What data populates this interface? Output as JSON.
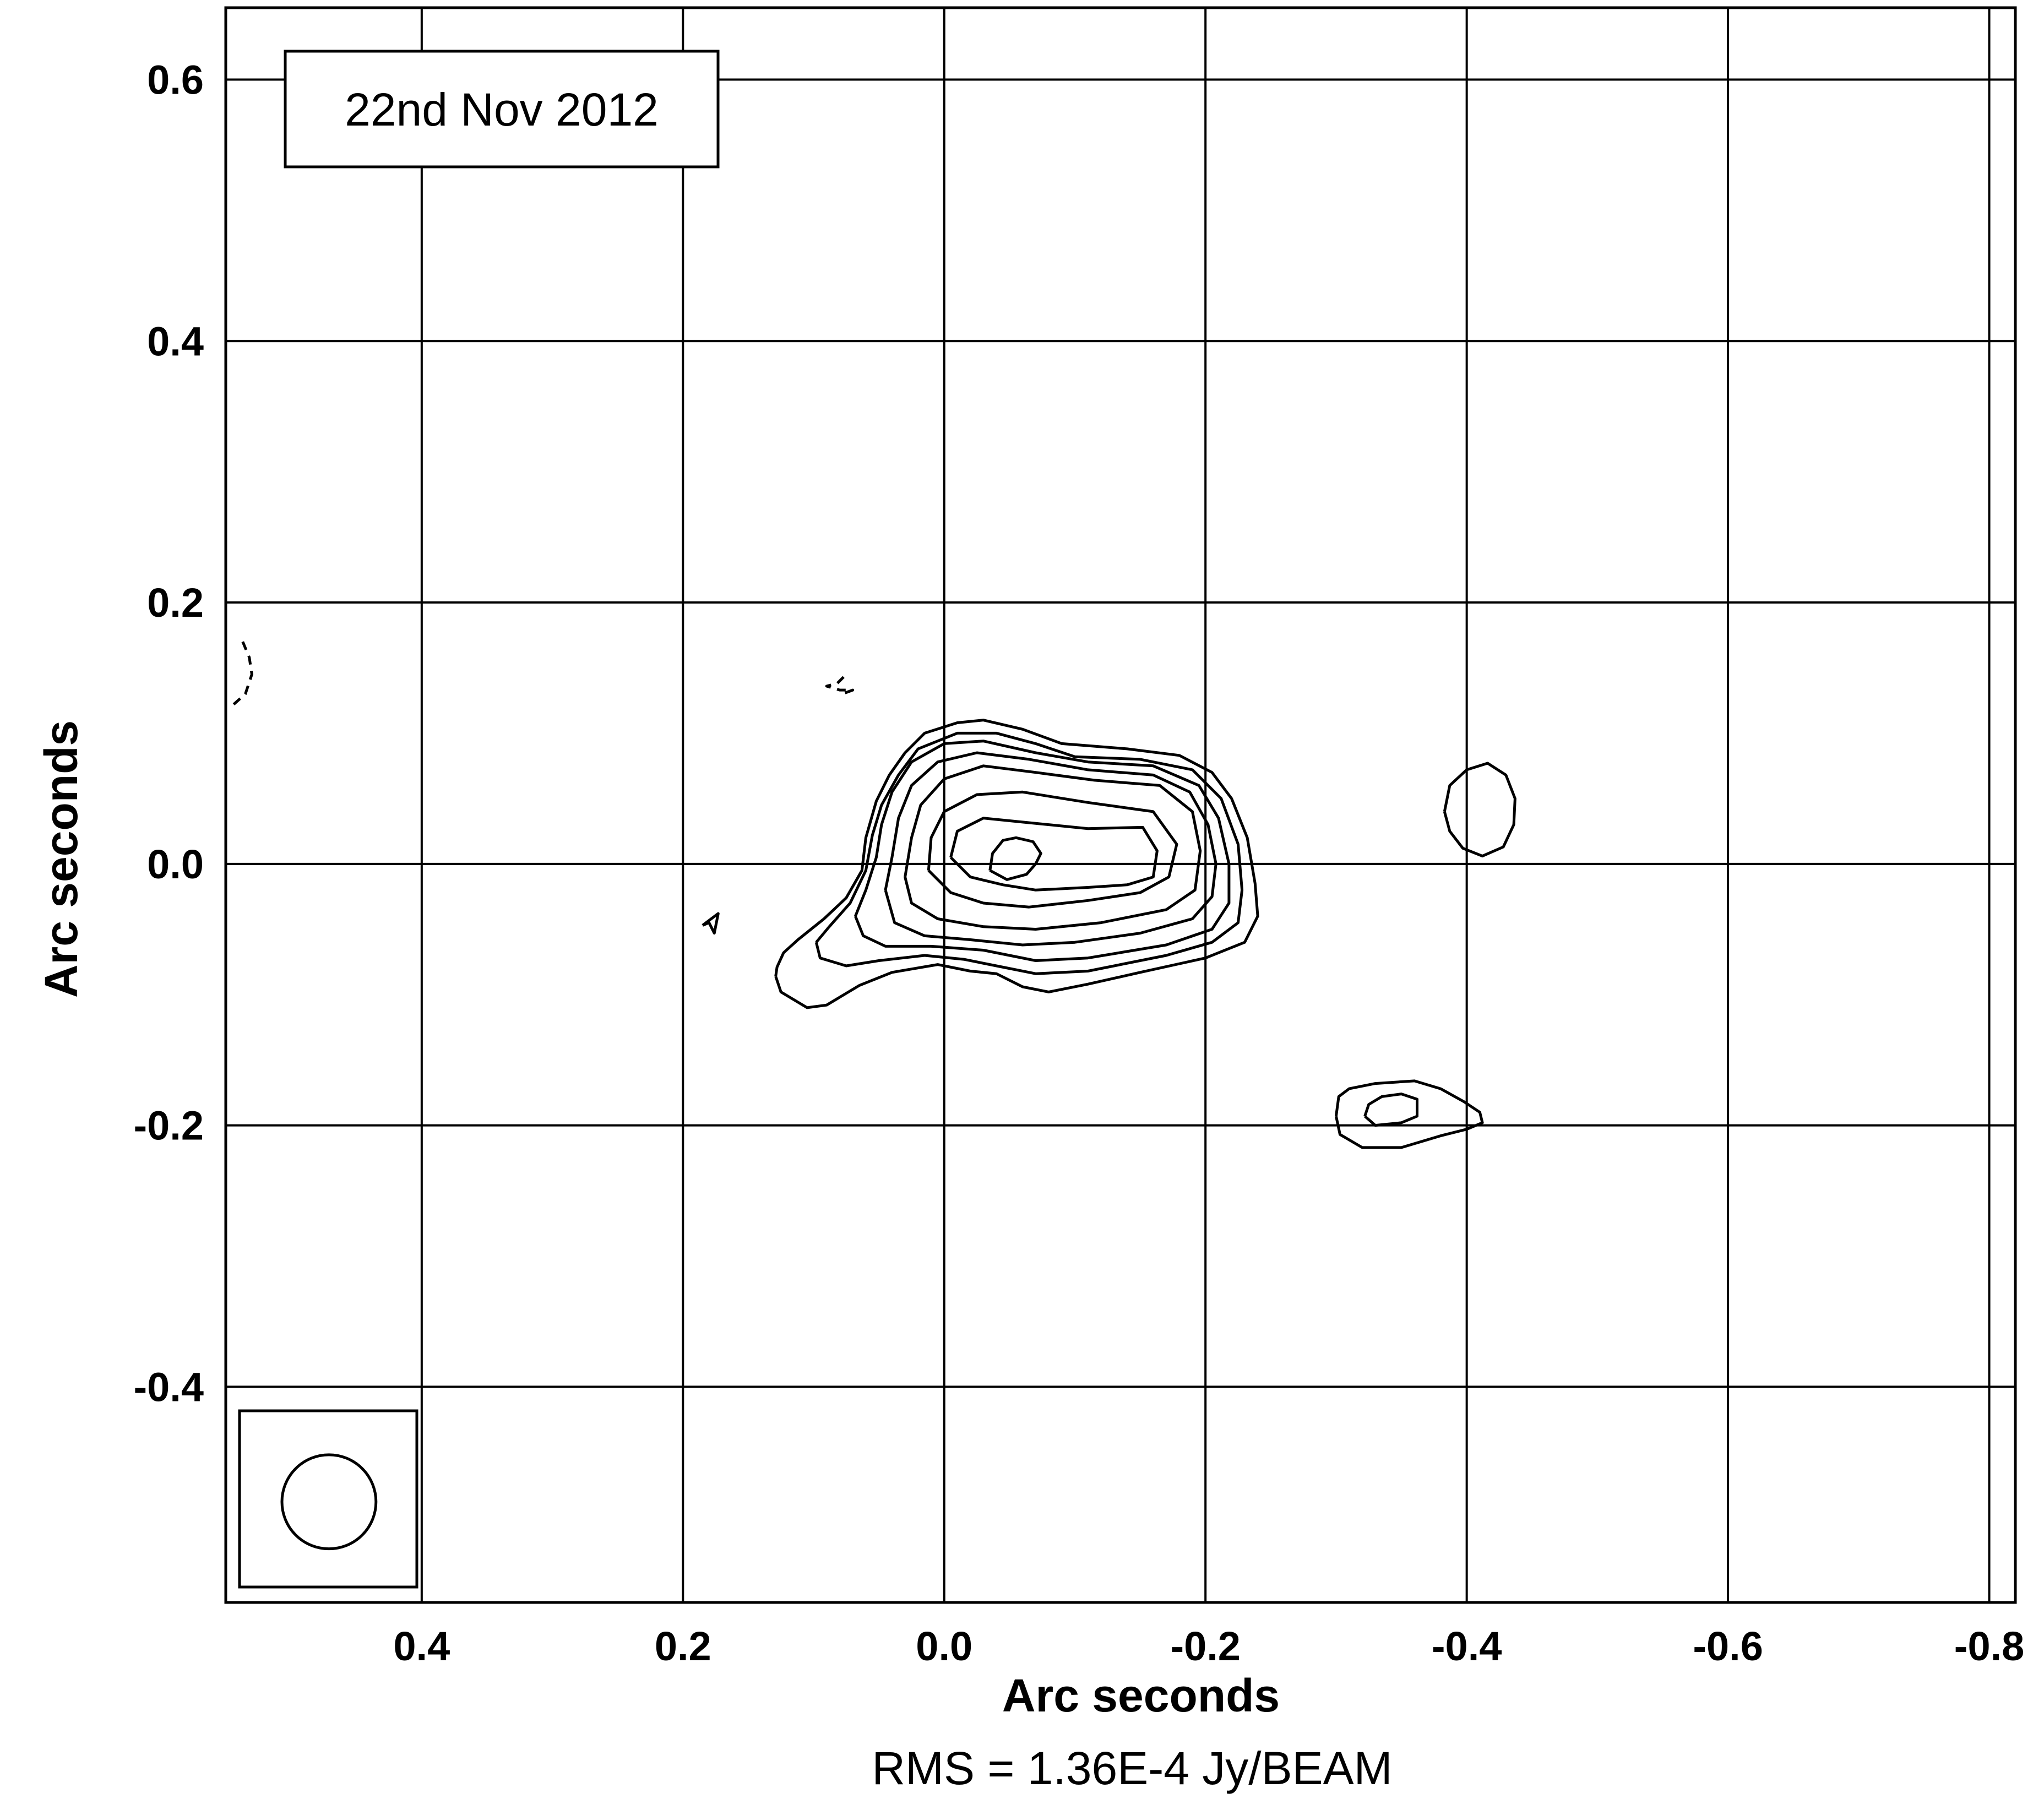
{
  "chart_data": {
    "type": "contour",
    "xlabel": "Arc seconds",
    "ylabel": "Arc seconds",
    "annotation": "22nd Nov 2012",
    "footer": "RMS = 1.36E-4 Jy/BEAM",
    "xlim": [
      0.55,
      -0.82
    ],
    "ylim": [
      -0.565,
      0.655
    ],
    "x_ticks": [
      {
        "value": 0.4,
        "label": "0.4"
      },
      {
        "value": 0.2,
        "label": "0.2"
      },
      {
        "value": 0.0,
        "label": "0.0"
      },
      {
        "value": -0.2,
        "label": "-0.2"
      },
      {
        "value": -0.4,
        "label": "-0.4"
      },
      {
        "value": -0.6,
        "label": "-0.6"
      },
      {
        "value": -0.8,
        "label": "-0.8"
      }
    ],
    "y_ticks": [
      {
        "value": 0.6,
        "label": "0.6"
      },
      {
        "value": 0.4,
        "label": "0.4"
      },
      {
        "value": 0.2,
        "label": "0.2"
      },
      {
        "value": 0.0,
        "label": "0.0"
      },
      {
        "value": -0.2,
        "label": "-0.2"
      },
      {
        "value": -0.4,
        "label": "-0.4"
      }
    ],
    "grid": true,
    "beam": {
      "x": 0.471,
      "y": -0.488,
      "radius": 0.036
    },
    "contours": [
      {
        "name": "level-1",
        "style": "solid",
        "points": [
          [
            0.129,
            -0.086
          ],
          [
            0.128,
            -0.079
          ],
          [
            0.123,
            -0.068
          ],
          [
            0.112,
            -0.058
          ],
          [
            0.092,
            -0.042
          ],
          [
            0.075,
            -0.026
          ],
          [
            0.063,
            -0.005
          ],
          [
            0.06,
            0.02
          ],
          [
            0.052,
            0.048
          ],
          [
            0.042,
            0.068
          ],
          [
            0.03,
            0.085
          ],
          [
            0.015,
            0.1
          ],
          [
            -0.01,
            0.108
          ],
          [
            -0.03,
            0.11
          ],
          [
            -0.06,
            0.103
          ],
          [
            -0.09,
            0.092
          ],
          [
            -0.14,
            0.088
          ],
          [
            -0.18,
            0.083
          ],
          [
            -0.205,
            0.07
          ],
          [
            -0.22,
            0.05
          ],
          [
            -0.232,
            0.02
          ],
          [
            -0.238,
            -0.015
          ],
          [
            -0.24,
            -0.04
          ],
          [
            -0.23,
            -0.06
          ],
          [
            -0.2,
            -0.072
          ],
          [
            -0.15,
            -0.083
          ],
          [
            -0.11,
            -0.092
          ],
          [
            -0.08,
            -0.098
          ],
          [
            -0.06,
            -0.094
          ],
          [
            -0.04,
            -0.084
          ],
          [
            -0.02,
            -0.082
          ],
          [
            0.005,
            -0.077
          ],
          [
            0.04,
            -0.083
          ],
          [
            0.065,
            -0.093
          ],
          [
            0.09,
            -0.108
          ],
          [
            0.105,
            -0.11
          ],
          [
            0.125,
            -0.098
          ],
          [
            0.129,
            -0.086
          ]
        ]
      },
      {
        "name": "level-2",
        "style": "solid",
        "points": [
          [
            0.098,
            -0.06
          ],
          [
            0.088,
            -0.048
          ],
          [
            0.072,
            -0.03
          ],
          [
            0.06,
            -0.005
          ],
          [
            0.055,
            0.022
          ],
          [
            0.048,
            0.045
          ],
          [
            0.035,
            0.068
          ],
          [
            0.02,
            0.088
          ],
          [
            -0.01,
            0.1
          ],
          [
            -0.04,
            0.1
          ],
          [
            -0.07,
            0.092
          ],
          [
            -0.1,
            0.082
          ],
          [
            -0.15,
            0.08
          ],
          [
            -0.19,
            0.072
          ],
          [
            -0.212,
            0.05
          ],
          [
            -0.225,
            0.015
          ],
          [
            -0.228,
            -0.02
          ],
          [
            -0.225,
            -0.045
          ],
          [
            -0.205,
            -0.06
          ],
          [
            -0.17,
            -0.07
          ],
          [
            -0.11,
            -0.082
          ],
          [
            -0.07,
            -0.084
          ],
          [
            -0.04,
            -0.078
          ],
          [
            -0.015,
            -0.073
          ],
          [
            0.015,
            -0.07
          ],
          [
            0.05,
            -0.074
          ],
          [
            0.075,
            -0.078
          ],
          [
            0.095,
            -0.072
          ],
          [
            0.098,
            -0.06
          ]
        ]
      },
      {
        "name": "level-3",
        "style": "solid",
        "points": [
          [
            0.068,
            -0.04
          ],
          [
            0.06,
            -0.02
          ],
          [
            0.052,
            0.005
          ],
          [
            0.048,
            0.03
          ],
          [
            0.04,
            0.055
          ],
          [
            0.025,
            0.078
          ],
          [
            0.0,
            0.092
          ],
          [
            -0.03,
            0.094
          ],
          [
            -0.07,
            0.085
          ],
          [
            -0.11,
            0.078
          ],
          [
            -0.16,
            0.075
          ],
          [
            -0.195,
            0.06
          ],
          [
            -0.21,
            0.035
          ],
          [
            -0.218,
            0.0
          ],
          [
            -0.218,
            -0.03
          ],
          [
            -0.205,
            -0.05
          ],
          [
            -0.17,
            -0.062
          ],
          [
            -0.11,
            -0.072
          ],
          [
            -0.07,
            -0.074
          ],
          [
            -0.03,
            -0.066
          ],
          [
            0.01,
            -0.063
          ],
          [
            0.045,
            -0.063
          ],
          [
            0.062,
            -0.055
          ],
          [
            0.068,
            -0.04
          ]
        ]
      },
      {
        "name": "level-4",
        "style": "solid",
        "points": [
          [
            0.045,
            -0.02
          ],
          [
            0.04,
            0.005
          ],
          [
            0.035,
            0.035
          ],
          [
            0.025,
            0.06
          ],
          [
            0.005,
            0.078
          ],
          [
            -0.025,
            0.085
          ],
          [
            -0.065,
            0.08
          ],
          [
            -0.11,
            0.072
          ],
          [
            -0.16,
            0.068
          ],
          [
            -0.188,
            0.055
          ],
          [
            -0.202,
            0.03
          ],
          [
            -0.208,
            0.0
          ],
          [
            -0.205,
            -0.025
          ],
          [
            -0.19,
            -0.042
          ],
          [
            -0.15,
            -0.053
          ],
          [
            -0.1,
            -0.06
          ],
          [
            -0.06,
            -0.062
          ],
          [
            -0.02,
            -0.058
          ],
          [
            0.015,
            -0.055
          ],
          [
            0.038,
            -0.045
          ],
          [
            0.045,
            -0.02
          ]
        ]
      },
      {
        "name": "level-5",
        "style": "solid",
        "points": [
          [
            0.03,
            -0.01
          ],
          [
            0.025,
            0.02
          ],
          [
            0.018,
            0.045
          ],
          [
            0.0,
            0.065
          ],
          [
            -0.03,
            0.075
          ],
          [
            -0.07,
            0.07
          ],
          [
            -0.115,
            0.064
          ],
          [
            -0.165,
            0.06
          ],
          [
            -0.19,
            0.04
          ],
          [
            -0.196,
            0.01
          ],
          [
            -0.192,
            -0.02
          ],
          [
            -0.17,
            -0.035
          ],
          [
            -0.12,
            -0.045
          ],
          [
            -0.07,
            -0.05
          ],
          [
            -0.03,
            -0.048
          ],
          [
            0.005,
            -0.042
          ],
          [
            0.025,
            -0.03
          ],
          [
            0.03,
            -0.01
          ]
        ]
      },
      {
        "name": "level-6",
        "style": "solid",
        "points": [
          [
            0.012,
            -0.005
          ],
          [
            0.01,
            0.02
          ],
          [
            0.0,
            0.04
          ],
          [
            -0.025,
            0.053
          ],
          [
            -0.06,
            0.055
          ],
          [
            -0.11,
            0.047
          ],
          [
            -0.16,
            0.04
          ],
          [
            -0.178,
            0.015
          ],
          [
            -0.172,
            -0.01
          ],
          [
            -0.15,
            -0.022
          ],
          [
            -0.11,
            -0.028
          ],
          [
            -0.065,
            -0.033
          ],
          [
            -0.03,
            -0.03
          ],
          [
            -0.005,
            -0.022
          ],
          [
            0.012,
            -0.005
          ]
        ]
      },
      {
        "name": "level-7",
        "style": "solid",
        "points": [
          [
            -0.005,
            0.005
          ],
          [
            -0.01,
            0.025
          ],
          [
            -0.03,
            0.035
          ],
          [
            -0.06,
            0.032
          ],
          [
            -0.11,
            0.027
          ],
          [
            -0.152,
            0.028
          ],
          [
            -0.163,
            0.01
          ],
          [
            -0.16,
            -0.01
          ],
          [
            -0.14,
            -0.016
          ],
          [
            -0.11,
            -0.018
          ],
          [
            -0.07,
            -0.02
          ],
          [
            -0.045,
            -0.016
          ],
          [
            -0.02,
            -0.01
          ],
          [
            -0.005,
            0.005
          ]
        ]
      },
      {
        "name": "level-8",
        "style": "solid",
        "points": [
          [
            -0.035,
            -0.005
          ],
          [
            -0.037,
            0.008
          ],
          [
            -0.045,
            0.018
          ],
          [
            -0.055,
            0.02
          ],
          [
            -0.068,
            0.017
          ],
          [
            -0.074,
            0.008
          ],
          [
            -0.07,
            0.0
          ],
          [
            -0.063,
            -0.008
          ],
          [
            -0.048,
            -0.012
          ],
          [
            -0.035,
            -0.005
          ]
        ]
      },
      {
        "name": "knot-a-outer",
        "style": "solid",
        "points": [
          [
            -0.3,
            -0.193
          ],
          [
            -0.302,
            -0.178
          ],
          [
            -0.31,
            -0.172
          ],
          [
            -0.33,
            -0.168
          ],
          [
            -0.36,
            -0.166
          ],
          [
            -0.38,
            -0.172
          ],
          [
            -0.398,
            -0.182
          ],
          [
            -0.41,
            -0.19
          ],
          [
            -0.412,
            -0.198
          ],
          [
            -0.4,
            -0.203
          ],
          [
            -0.38,
            -0.208
          ],
          [
            -0.35,
            -0.217
          ],
          [
            -0.32,
            -0.217
          ],
          [
            -0.303,
            -0.207
          ],
          [
            -0.3,
            -0.193
          ]
        ]
      },
      {
        "name": "knot-a-inner",
        "style": "solid",
        "points": [
          [
            -0.322,
            -0.193
          ],
          [
            -0.325,
            -0.184
          ],
          [
            -0.335,
            -0.178
          ],
          [
            -0.35,
            -0.176
          ],
          [
            -0.362,
            -0.18
          ],
          [
            -0.362,
            -0.193
          ],
          [
            -0.35,
            -0.198
          ],
          [
            -0.33,
            -0.2
          ],
          [
            -0.322,
            -0.193
          ]
        ]
      },
      {
        "name": "knot-b",
        "style": "solid",
        "points": [
          [
            -0.383,
            0.04
          ],
          [
            -0.387,
            0.06
          ],
          [
            -0.4,
            0.072
          ],
          [
            -0.416,
            0.077
          ],
          [
            -0.43,
            0.068
          ],
          [
            -0.437,
            0.05
          ],
          [
            -0.436,
            0.03
          ],
          [
            -0.428,
            0.013
          ],
          [
            -0.412,
            0.006
          ],
          [
            -0.397,
            0.012
          ],
          [
            -0.387,
            0.025
          ],
          [
            -0.383,
            0.04
          ]
        ]
      },
      {
        "name": "noise-triangle",
        "style": "solid",
        "points": [
          [
            0.185,
            -0.047
          ],
          [
            0.173,
            -0.038
          ],
          [
            0.176,
            -0.053
          ],
          [
            0.18,
            -0.045
          ],
          [
            0.185,
            -0.047
          ]
        ]
      },
      {
        "name": "negative-left",
        "style": "dashed",
        "points": [
          [
            0.537,
            0.17
          ],
          [
            0.532,
            0.158
          ],
          [
            0.53,
            0.145
          ],
          [
            0.535,
            0.13
          ],
          [
            0.544,
            0.122
          ]
        ]
      },
      {
        "name": "negative-top",
        "style": "dashed",
        "points": [
          [
            0.077,
            0.143
          ],
          [
            0.082,
            0.138
          ],
          [
            0.09,
            0.136
          ],
          [
            0.08,
            0.133
          ],
          [
            0.07,
            0.133
          ],
          [
            0.078,
            0.13
          ]
        ]
      }
    ]
  }
}
